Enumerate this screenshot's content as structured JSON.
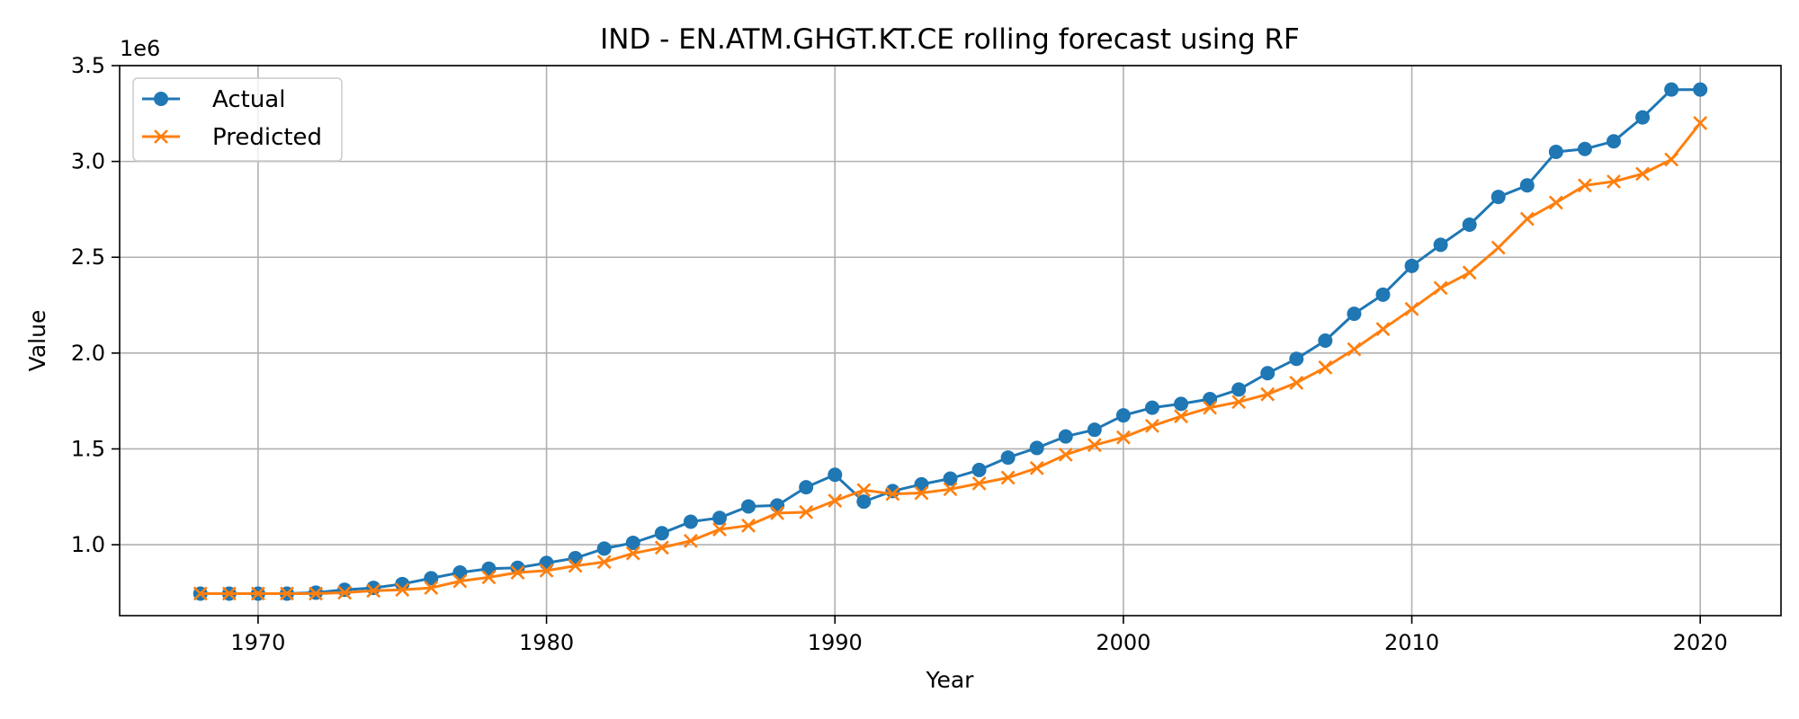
{
  "chart_data": {
    "type": "line",
    "title": "IND - EN.ATM.GHGT.KT.CE rolling forecast using RF",
    "xlabel": "Year",
    "ylabel": "Value",
    "y_offset_label": "1e6",
    "xlim": [
      1965.2,
      2022.8
    ],
    "ylim": [
      0.63,
      3.5
    ],
    "x_ticks": [
      1970,
      1980,
      1990,
      2000,
      2010,
      2020
    ],
    "y_ticks": [
      1.0,
      1.5,
      2.0,
      2.5,
      3.0,
      3.5
    ],
    "y_tick_labels": [
      "1.0",
      "1.5",
      "2.0",
      "2.5",
      "3.0",
      "3.5"
    ],
    "grid": true,
    "legend_position": "top-left",
    "x": [
      1968,
      1969,
      1970,
      1971,
      1972,
      1973,
      1974,
      1975,
      1976,
      1977,
      1978,
      1979,
      1980,
      1981,
      1982,
      1983,
      1984,
      1985,
      1986,
      1987,
      1988,
      1989,
      1990,
      1991,
      1992,
      1993,
      1994,
      1995,
      1996,
      1997,
      1998,
      1999,
      2000,
      2001,
      2002,
      2003,
      2004,
      2005,
      2006,
      2007,
      2008,
      2009,
      2010,
      2011,
      2012,
      2013,
      2014,
      2015,
      2016,
      2017,
      2018,
      2019,
      2020
    ],
    "series": [
      {
        "name": "Actual",
        "color": "#1f77b4",
        "marker": "circle",
        "values": [
          0.745,
          0.745,
          0.745,
          0.745,
          0.75,
          0.765,
          0.775,
          0.795,
          0.825,
          0.855,
          0.875,
          0.88,
          0.905,
          0.93,
          0.98,
          1.01,
          1.06,
          1.12,
          1.14,
          1.2,
          1.205,
          1.3,
          1.365,
          1.225,
          1.28,
          1.315,
          1.345,
          1.39,
          1.455,
          1.505,
          1.565,
          1.6,
          1.675,
          1.715,
          1.735,
          1.76,
          1.81,
          1.895,
          1.97,
          2.065,
          2.205,
          2.305,
          2.455,
          2.565,
          2.67,
          2.815,
          2.875,
          3.05,
          3.065,
          3.105,
          3.23,
          3.375,
          3.375
        ]
      },
      {
        "name": "Predicted",
        "color": "#ff7f0e",
        "marker": "x",
        "values": [
          0.745,
          0.745,
          0.745,
          0.745,
          0.745,
          0.75,
          0.76,
          0.765,
          0.775,
          0.81,
          0.83,
          0.855,
          0.865,
          0.89,
          0.91,
          0.955,
          0.985,
          1.02,
          1.08,
          1.1,
          1.165,
          1.17,
          1.23,
          1.285,
          1.265,
          1.27,
          1.29,
          1.32,
          1.35,
          1.4,
          1.47,
          1.52,
          1.56,
          1.62,
          1.67,
          1.715,
          1.745,
          1.785,
          1.845,
          1.925,
          2.02,
          2.125,
          2.23,
          2.34,
          2.42,
          2.55,
          2.7,
          2.785,
          2.875,
          2.895,
          2.935,
          3.01,
          3.2
        ]
      }
    ]
  }
}
